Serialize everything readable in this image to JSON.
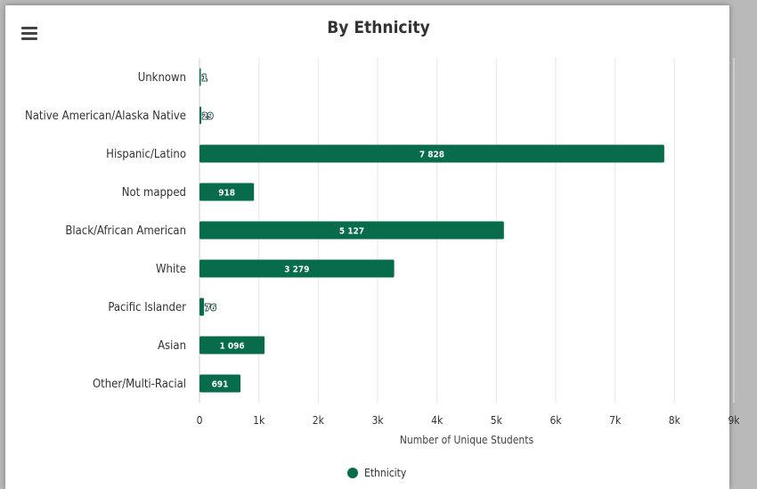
{
  "header": {
    "title": "By Ethnicity",
    "menu_icon": "hamburger-menu-icon"
  },
  "colors": {
    "bar": "#076b4c",
    "grid": "#e6e6e6",
    "text": "#333333"
  },
  "chart_data": {
    "type": "bar",
    "orientation": "horizontal",
    "title": "By Ethnicity",
    "xlabel": "Number of Unique Students",
    "ylabel": "",
    "categories": [
      "Unknown",
      "Native American/Alaska Native",
      "Hispanic/Latino",
      "Not mapped",
      "Black/African American",
      "White",
      "Pacific Islander",
      "Asian",
      "Other/Multi-Racial"
    ],
    "series": [
      {
        "name": "Ethnicity",
        "values": [
          1,
          29,
          7828,
          918,
          5127,
          3279,
          76,
          1096,
          691
        ],
        "labels": [
          "1",
          "29",
          "7 828",
          "918",
          "5 127",
          "3 279",
          "76",
          "1 096",
          "691"
        ]
      }
    ],
    "xlim": [
      0,
      9000
    ],
    "xticks": [
      0,
      1000,
      2000,
      3000,
      4000,
      5000,
      6000,
      7000,
      8000,
      9000
    ],
    "xtick_labels": [
      "0",
      "1k",
      "2k",
      "3k",
      "4k",
      "5k",
      "6k",
      "7k",
      "8k",
      "9k"
    ],
    "grid": true,
    "legend": {
      "position": "bottom-center",
      "entries": [
        "Ethnicity"
      ]
    }
  }
}
